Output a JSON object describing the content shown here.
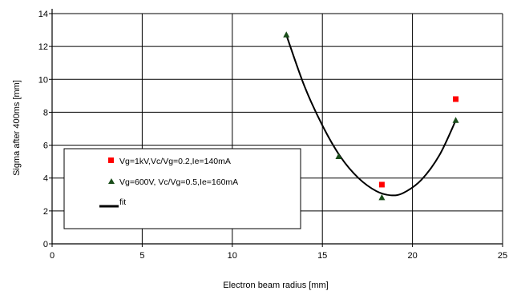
{
  "chart_data": {
    "type": "scatter",
    "title": "",
    "xlabel": "Electron beam radius [mm]",
    "ylabel": "Sigma after 400ms [mm]",
    "xlim": [
      0,
      25
    ],
    "ylim": [
      0,
      14
    ],
    "x_ticks": [
      0,
      5,
      10,
      15,
      20,
      25
    ],
    "y_ticks": [
      0,
      2,
      4,
      6,
      8,
      10,
      12,
      14
    ],
    "grid": true,
    "legend_position": "bottom-left",
    "series": [
      {
        "name": "Vg=1kV,Vc/Vg=0.2,Ie=140mA",
        "marker": "square",
        "color": "#ff0000",
        "points": [
          {
            "x": 18.3,
            "y": 3.6
          },
          {
            "x": 22.4,
            "y": 8.8
          }
        ]
      },
      {
        "name": "Vg=600V, Vc/Vg=0.5,Ie=160mA",
        "marker": "triangle",
        "color": "#1a4d1a",
        "points": [
          {
            "x": 13.0,
            "y": 12.7
          },
          {
            "x": 15.9,
            "y": 5.3
          },
          {
            "x": 18.3,
            "y": 2.8
          },
          {
            "x": 22.4,
            "y": 7.5
          }
        ]
      },
      {
        "name": "fit",
        "marker": "line",
        "color": "#000000",
        "points": [
          {
            "x": 13.0,
            "y": 12.7
          },
          {
            "x": 14.0,
            "y": 9.6
          },
          {
            "x": 15.0,
            "y": 7.2
          },
          {
            "x": 16.0,
            "y": 5.3
          },
          {
            "x": 17.0,
            "y": 4.0
          },
          {
            "x": 18.0,
            "y": 3.2
          },
          {
            "x": 18.8,
            "y": 2.95
          },
          {
            "x": 19.5,
            "y": 3.1
          },
          {
            "x": 20.5,
            "y": 3.9
          },
          {
            "x": 21.5,
            "y": 5.4
          },
          {
            "x": 22.4,
            "y": 7.5
          }
        ]
      }
    ]
  }
}
